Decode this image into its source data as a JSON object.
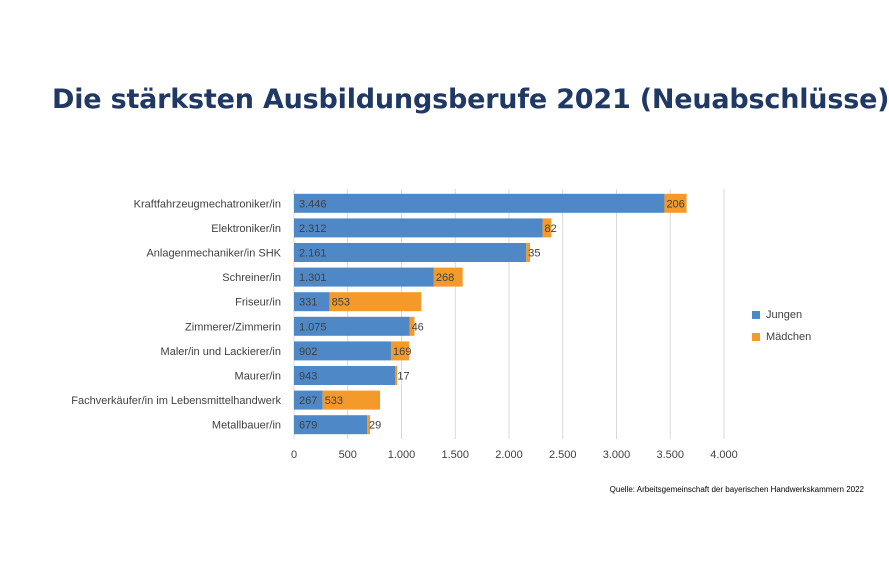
{
  "title": "Die stärksten Ausbildungsberufe 2021 (Neuabschlüsse)",
  "source": "Quelle: Arbeitsgemeinschaft der bayerischen Handwerkskammern 2022",
  "colors": {
    "jungen": "#4f88c6",
    "maedchen": "#f39a2b",
    "grid": "#d9d9d9",
    "text": "#404040"
  },
  "chart_data": {
    "type": "bar",
    "orientation": "horizontal",
    "stacked": true,
    "categories": [
      "Kraftfahrzeugmechatroniker/in",
      "Elektroniker/in",
      "Anlagenmechaniker/in SHK",
      "Schreiner/in",
      "Friseur/in",
      "Zimmerer/Zimmerin",
      "Maler/in und Lackierer/in",
      "Maurer/in",
      "Fachverkäufer/in im Lebensmittelhandwerk",
      "Metallbauer/in"
    ],
    "series": [
      {
        "name": "Jungen",
        "values": [
          3446,
          2312,
          2161,
          1301,
          331,
          1075,
          902,
          943,
          267,
          679
        ],
        "labels": [
          "3.446",
          "2.312",
          "2.161",
          "1.301",
          "331",
          "1.075",
          "902",
          "943",
          "267",
          "679"
        ]
      },
      {
        "name": "Mädchen",
        "values": [
          206,
          82,
          35,
          268,
          853,
          46,
          169,
          17,
          533,
          29
        ],
        "labels": [
          "206",
          "82",
          "35",
          "268",
          "853",
          "46",
          "169",
          "17",
          "533",
          "29"
        ]
      }
    ],
    "xlim": [
      0,
      4000
    ],
    "xticks": [
      0,
      500,
      1000,
      1500,
      2000,
      2500,
      3000,
      3500,
      4000
    ],
    "xtick_labels": [
      "0",
      "500",
      "1.000",
      "1.500",
      "2.000",
      "2.500",
      "3.000",
      "3.500",
      "4.000"
    ],
    "grid": true,
    "legend_position": "right"
  }
}
